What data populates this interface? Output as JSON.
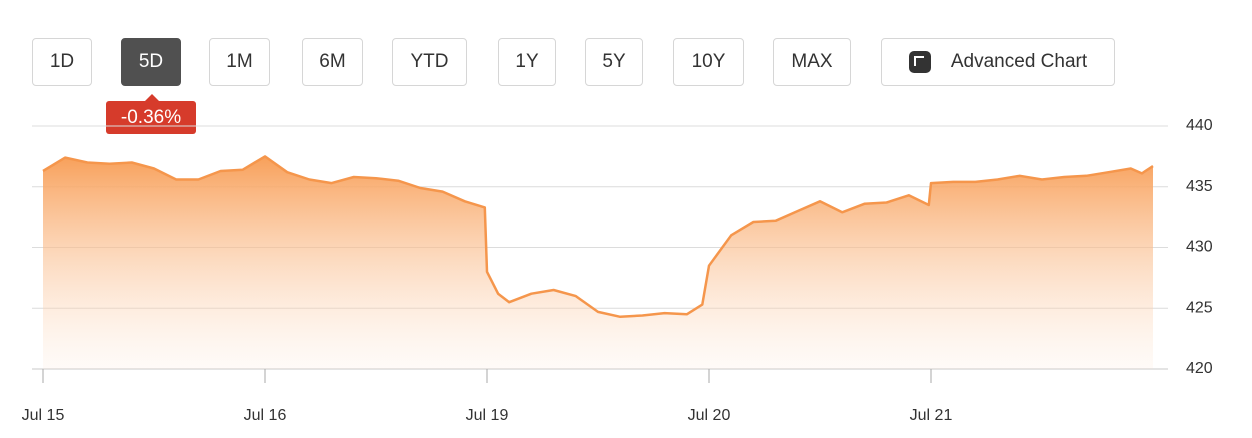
{
  "range_buttons": [
    "1D",
    "5D",
    "1M",
    "6M",
    "YTD",
    "1Y",
    "5Y",
    "10Y",
    "MAX",
    "Advanced Chart"
  ],
  "selected_button": 1,
  "change_badge": "-0.36%",
  "chart_data": {
    "type": "area",
    "color": "#f5964c",
    "grid": true,
    "x": [
      0,
      0.1,
      0.2,
      0.3,
      0.4,
      0.5,
      0.6,
      0.7,
      0.8,
      0.9,
      1.0,
      1.1,
      1.2,
      1.3,
      1.4,
      1.5,
      1.6,
      1.7,
      1.8,
      1.9,
      1.99,
      2.0,
      2.05,
      2.1,
      2.2,
      2.3,
      2.4,
      2.5,
      2.6,
      2.7,
      2.8,
      2.9,
      2.97,
      3.0,
      3.1,
      3.2,
      3.3,
      3.4,
      3.5,
      3.6,
      3.7,
      3.8,
      3.9,
      3.99,
      4.0,
      4.1,
      4.2,
      4.3,
      4.4,
      4.5,
      4.6,
      4.7,
      4.8,
      4.9,
      4.95,
      5.0
    ],
    "values": [
      436.3,
      437.4,
      437.0,
      436.9,
      437.0,
      436.5,
      435.6,
      435.6,
      436.3,
      436.4,
      437.5,
      436.2,
      435.6,
      435.3,
      435.8,
      435.7,
      435.5,
      434.9,
      434.6,
      433.8,
      433.3,
      428.0,
      426.2,
      425.5,
      426.2,
      426.5,
      426.0,
      424.7,
      424.3,
      424.4,
      424.6,
      424.5,
      425.3,
      428.5,
      431.0,
      432.1,
      432.2,
      433.0,
      433.8,
      432.9,
      433.6,
      433.7,
      434.3,
      433.5,
      435.3,
      435.4,
      435.4,
      435.6,
      435.9,
      435.6,
      435.8,
      435.9,
      436.2,
      436.5,
      436.1,
      436.7
    ],
    "xlim": [
      0,
      5
    ],
    "xticks": [
      {
        "value": 0,
        "label": "Jul 15"
      },
      {
        "value": 1,
        "label": "Jul 16"
      },
      {
        "value": 2,
        "label": "Jul 19"
      },
      {
        "value": 3,
        "label": "Jul 20"
      },
      {
        "value": 4,
        "label": "Jul 21"
      }
    ],
    "ylim": [
      420,
      440
    ],
    "yticks": [
      420,
      425,
      430,
      435,
      440
    ]
  }
}
